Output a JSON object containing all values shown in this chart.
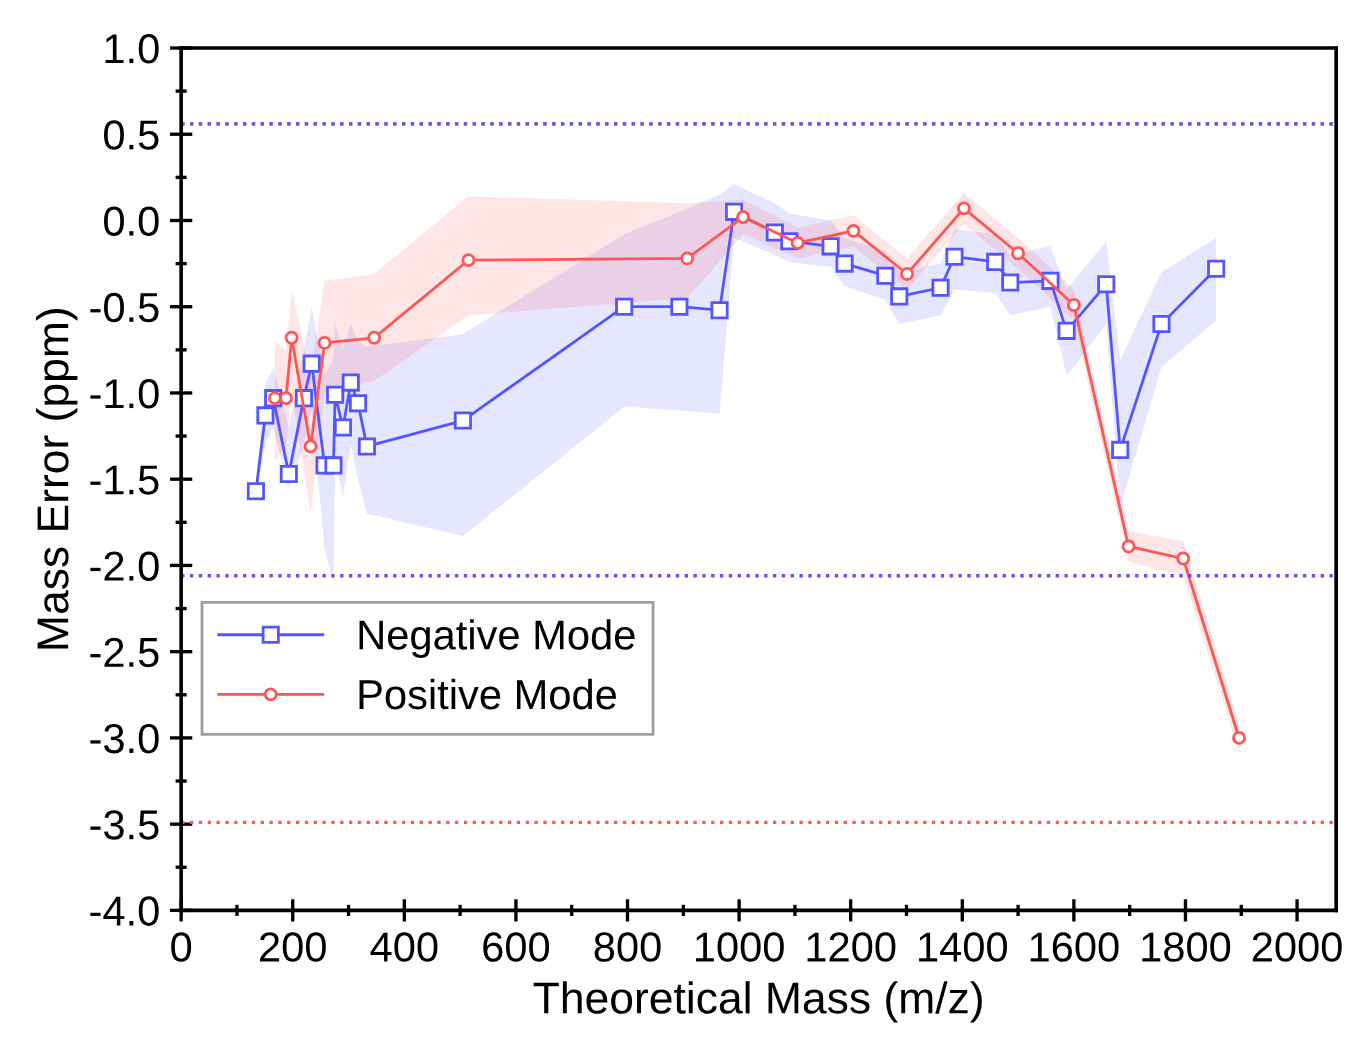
{
  "chart_data": {
    "type": "line",
    "xlabel": "Theoretical Mass (m/z)",
    "ylabel": "Mass Error (ppm)",
    "xlim": [
      0,
      2070
    ],
    "ylim": [
      -4.0,
      1.0
    ],
    "xticks": [
      0,
      200,
      400,
      600,
      800,
      1000,
      1200,
      1400,
      1600,
      1800,
      2000
    ],
    "yticks": [
      {
        "value": -4.0,
        "label": "-4.0"
      },
      {
        "value": -3.5,
        "label": "-3.5"
      },
      {
        "value": -3.0,
        "label": "-3.0"
      },
      {
        "value": -2.5,
        "label": "-2.5"
      },
      {
        "value": -2.0,
        "label": "-2.0"
      },
      {
        "value": -1.5,
        "label": "-1.5"
      },
      {
        "value": -1.0,
        "label": "-1.0"
      },
      {
        "value": -0.5,
        "label": "-0.5"
      },
      {
        "value": 0.0,
        "label": "0.0"
      },
      {
        "value": 0.5,
        "label": "0.5"
      },
      {
        "value": 1.0,
        "label": "1.0"
      }
    ],
    "grid": false,
    "legend": "bottom left",
    "series": [
      {
        "name": "Negative Mode",
        "color": "#5555ff",
        "marker": "square",
        "x": [
          134,
          151,
          165,
          193,
          220,
          234,
          257,
          273,
          276,
          290,
          304,
          317,
          333,
          505,
          794,
          893,
          965,
          991,
          1064,
          1090,
          1164,
          1189,
          1262,
          1287,
          1361,
          1386,
          1459,
          1486,
          1558,
          1587,
          1658,
          1683,
          1757,
          1855
        ],
        "values": [
          -1.57,
          -1.13,
          -1.03,
          -1.47,
          -1.03,
          -0.83,
          -1.42,
          -1.42,
          -1.01,
          -1.2,
          -0.94,
          -1.06,
          -1.31,
          -1.16,
          -0.5,
          -0.5,
          -0.52,
          0.05,
          -0.07,
          -0.12,
          -0.15,
          -0.25,
          -0.32,
          -0.44,
          -0.39,
          -0.21,
          -0.24,
          -0.36,
          -0.35,
          -0.64,
          -0.37,
          -1.33,
          -0.6,
          -0.28
        ],
        "lower": [
          -1.6,
          -1.3,
          -1.2,
          -1.55,
          -1.3,
          -1.1,
          -1.9,
          -2.1,
          -1.4,
          -1.6,
          -1.3,
          -1.5,
          -1.7,
          -1.83,
          -1.08,
          -1.1,
          -1.12,
          -0.1,
          -0.2,
          -0.24,
          -0.27,
          -0.38,
          -0.46,
          -0.6,
          -0.55,
          -0.4,
          -0.42,
          -0.55,
          -0.5,
          -0.9,
          -0.6,
          -1.66,
          -0.85,
          -0.58
        ],
        "upper": [
          -1.5,
          -0.95,
          -0.85,
          -1.2,
          -0.75,
          -0.5,
          -0.9,
          -0.8,
          -0.6,
          -0.75,
          -0.6,
          -0.7,
          -0.73,
          -0.66,
          -0.08,
          0.05,
          0.15,
          0.21,
          0.1,
          0.04,
          0.0,
          -0.1,
          -0.18,
          -0.3,
          -0.25,
          -0.05,
          -0.08,
          -0.2,
          -0.15,
          -0.4,
          -0.12,
          -0.81,
          -0.3,
          -0.1
        ]
      },
      {
        "name": "Positive Mode",
        "color": "#ff5555",
        "marker": "circle",
        "x": [
          168,
          188,
          198,
          232,
          257,
          346,
          515,
          907,
          1007,
          1105,
          1205,
          1301,
          1403,
          1500,
          1600,
          1698,
          1796,
          1896
        ],
        "values": [
          -1.03,
          -1.03,
          -0.68,
          -1.31,
          -0.71,
          -0.68,
          -0.23,
          -0.22,
          0.02,
          -0.13,
          -0.06,
          -0.31,
          0.07,
          -0.19,
          -0.49,
          -1.89,
          -1.96,
          -3.0
        ],
        "lower": [
          -1.4,
          -1.3,
          -1.0,
          -1.7,
          -1.0,
          -0.93,
          -0.55,
          -0.45,
          -0.08,
          -0.22,
          -0.15,
          -0.4,
          -0.02,
          -0.28,
          -0.58,
          -1.98,
          -2.06,
          -3.08
        ],
        "upper": [
          -0.7,
          -0.75,
          -0.4,
          -0.9,
          -0.35,
          -0.31,
          0.14,
          0.1,
          0.12,
          -0.04,
          0.03,
          -0.22,
          0.16,
          -0.1,
          -0.4,
          -1.8,
          -1.86,
          -2.92
        ]
      }
    ],
    "ref_lines": [
      {
        "axis": "y",
        "value": 0.56,
        "color": "#ff5555",
        "line_style": "dotted"
      },
      {
        "axis": "y",
        "value": 0.56,
        "color": "#5555ff",
        "line_style": "dotted"
      },
      {
        "axis": "y",
        "value": -2.06,
        "color": "#5555ff",
        "line_style": "dotted"
      },
      {
        "axis": "y",
        "value": -3.49,
        "color": "#ff5555",
        "line_style": "dotted"
      }
    ]
  }
}
